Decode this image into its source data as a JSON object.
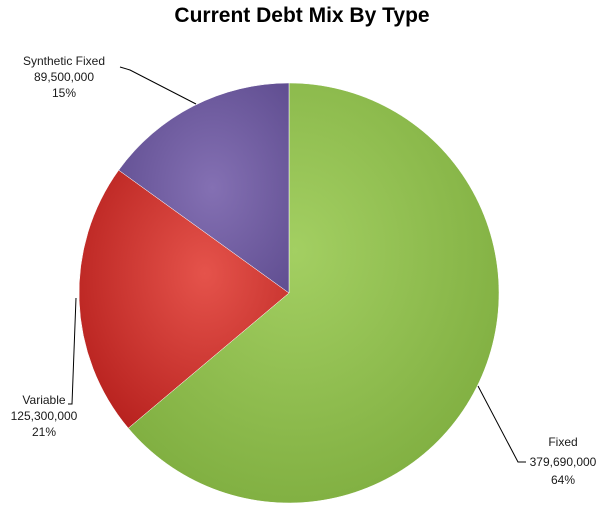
{
  "chart_data": {
    "type": "pie",
    "title": "Current Debt Mix By Type",
    "slices": [
      {
        "name": "Fixed",
        "value_label": "379,690,000",
        "value": 379690000,
        "percent": "64%",
        "color": "#8fc04f"
      },
      {
        "name": "Variable",
        "value_label": "125,300,000",
        "value": 125300000,
        "percent": "21%",
        "color": "#d63a35"
      },
      {
        "name": "Synthetic Fixed",
        "value_label": "89,500,000",
        "value": 89500000,
        "percent": "15%",
        "color": "#7460a3"
      }
    ]
  }
}
